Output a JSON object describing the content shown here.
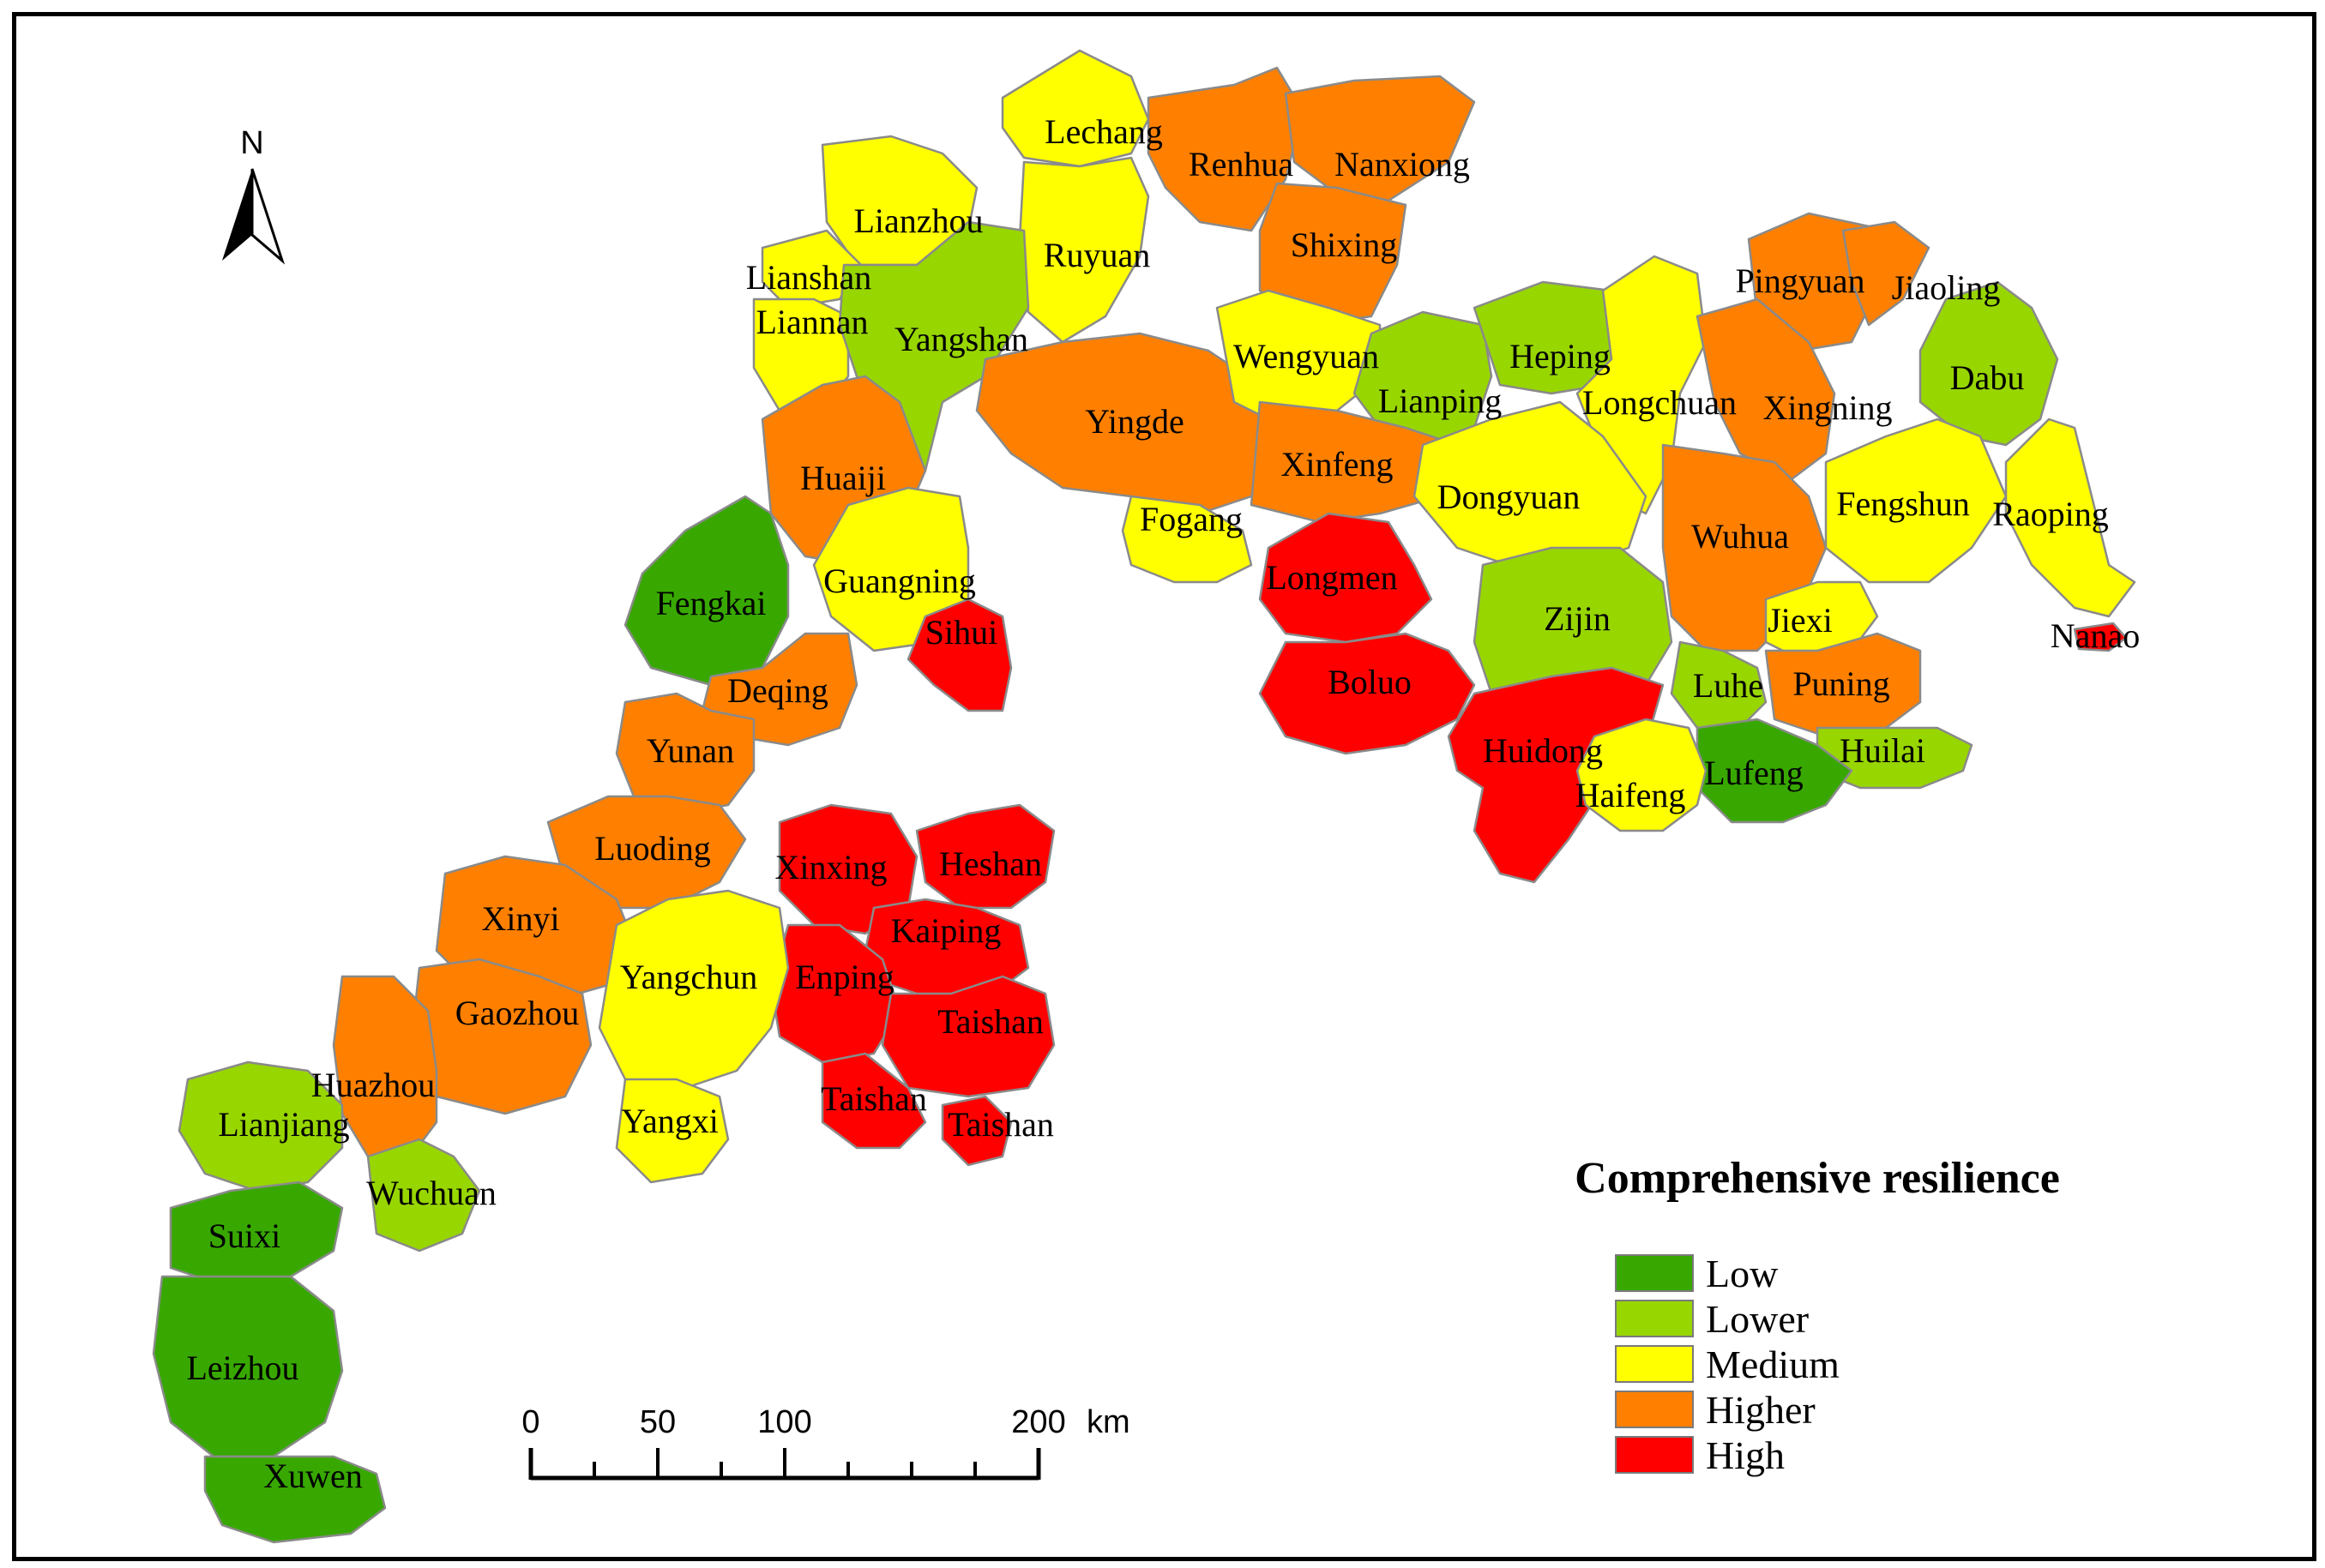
{
  "legend": {
    "title": "Comprehensive resilience",
    "classes": [
      {
        "label": "Low",
        "color": "#38a800"
      },
      {
        "label": "Lower",
        "color": "#98d600"
      },
      {
        "label": "Medium",
        "color": "#ffff00"
      },
      {
        "label": "Higher",
        "color": "#ff8000"
      },
      {
        "label": "High",
        "color": "#ff0000"
      }
    ]
  },
  "north_arrow": {
    "letter": "N"
  },
  "scale_bar": {
    "ticks": [
      "0",
      "50",
      "100",
      "200"
    ],
    "unit": "km"
  },
  "counties": [
    {
      "name": "Lechang",
      "class": "Medium"
    },
    {
      "name": "Renhua",
      "class": "Higher"
    },
    {
      "name": "Nanxiong",
      "class": "Higher"
    },
    {
      "name": "Shixing",
      "class": "Higher"
    },
    {
      "name": "Lianzhou",
      "class": "Medium"
    },
    {
      "name": "Ruyuan",
      "class": "Medium"
    },
    {
      "name": "Lianshan",
      "class": "Medium"
    },
    {
      "name": "Liannan",
      "class": "Medium"
    },
    {
      "name": "Yangshan",
      "class": "Lower"
    },
    {
      "name": "Wengyuan",
      "class": "Medium"
    },
    {
      "name": "Pingyuan",
      "class": "Higher"
    },
    {
      "name": "Jiaoling",
      "class": "Higher"
    },
    {
      "name": "Heping",
      "class": "Lower"
    },
    {
      "name": "Dabu",
      "class": "Lower"
    },
    {
      "name": "Lianping",
      "class": "Lower"
    },
    {
      "name": "Longchuan",
      "class": "Medium"
    },
    {
      "name": "Xingning",
      "class": "Higher"
    },
    {
      "name": "Yingde",
      "class": "Higher"
    },
    {
      "name": "Xinfeng",
      "class": "Higher"
    },
    {
      "name": "Huaiji",
      "class": "Higher"
    },
    {
      "name": "Dongyuan",
      "class": "Medium"
    },
    {
      "name": "Fengshun",
      "class": "Medium"
    },
    {
      "name": "Raoping",
      "class": "Medium"
    },
    {
      "name": "Fogang",
      "class": "Medium"
    },
    {
      "name": "Wuhua",
      "class": "Higher"
    },
    {
      "name": "Longmen",
      "class": "High"
    },
    {
      "name": "Guangning",
      "class": "Medium"
    },
    {
      "name": "Fengkai",
      "class": "Low"
    },
    {
      "name": "Zijin",
      "class": "Lower"
    },
    {
      "name": "Jiexi",
      "class": "Medium"
    },
    {
      "name": "Sihui",
      "class": "High"
    },
    {
      "name": "Nanao",
      "class": "High"
    },
    {
      "name": "Boluo",
      "class": "High"
    },
    {
      "name": "Luhe",
      "class": "Lower"
    },
    {
      "name": "Puning",
      "class": "Higher"
    },
    {
      "name": "Deqing",
      "class": "Higher"
    },
    {
      "name": "Huidong",
      "class": "High"
    },
    {
      "name": "Huilai",
      "class": "Lower"
    },
    {
      "name": "Yunan",
      "class": "Higher"
    },
    {
      "name": "Lufeng",
      "class": "Low"
    },
    {
      "name": "Haifeng",
      "class": "Medium"
    },
    {
      "name": "Luoding",
      "class": "Higher"
    },
    {
      "name": "Xinxing",
      "class": "High"
    },
    {
      "name": "Heshan",
      "class": "High"
    },
    {
      "name": "Kaiping",
      "class": "High"
    },
    {
      "name": "Xinyi",
      "class": "Higher"
    },
    {
      "name": "Enping",
      "class": "High"
    },
    {
      "name": "Yangchun",
      "class": "Medium"
    },
    {
      "name": "Taishan",
      "class": "High"
    },
    {
      "name": "Gaozhou",
      "class": "Higher"
    },
    {
      "name": "Huazhou",
      "class": "Higher"
    },
    {
      "name": "Taishan",
      "class": "High"
    },
    {
      "name": "Taishan",
      "class": "High"
    },
    {
      "name": "Lianjiang",
      "class": "Lower"
    },
    {
      "name": "Yangxi",
      "class": "Medium"
    },
    {
      "name": "Wuchuan",
      "class": "Lower"
    },
    {
      "name": "Suixi",
      "class": "Low"
    },
    {
      "name": "Leizhou",
      "class": "Low"
    },
    {
      "name": "Xuwen",
      "class": "Low"
    }
  ]
}
